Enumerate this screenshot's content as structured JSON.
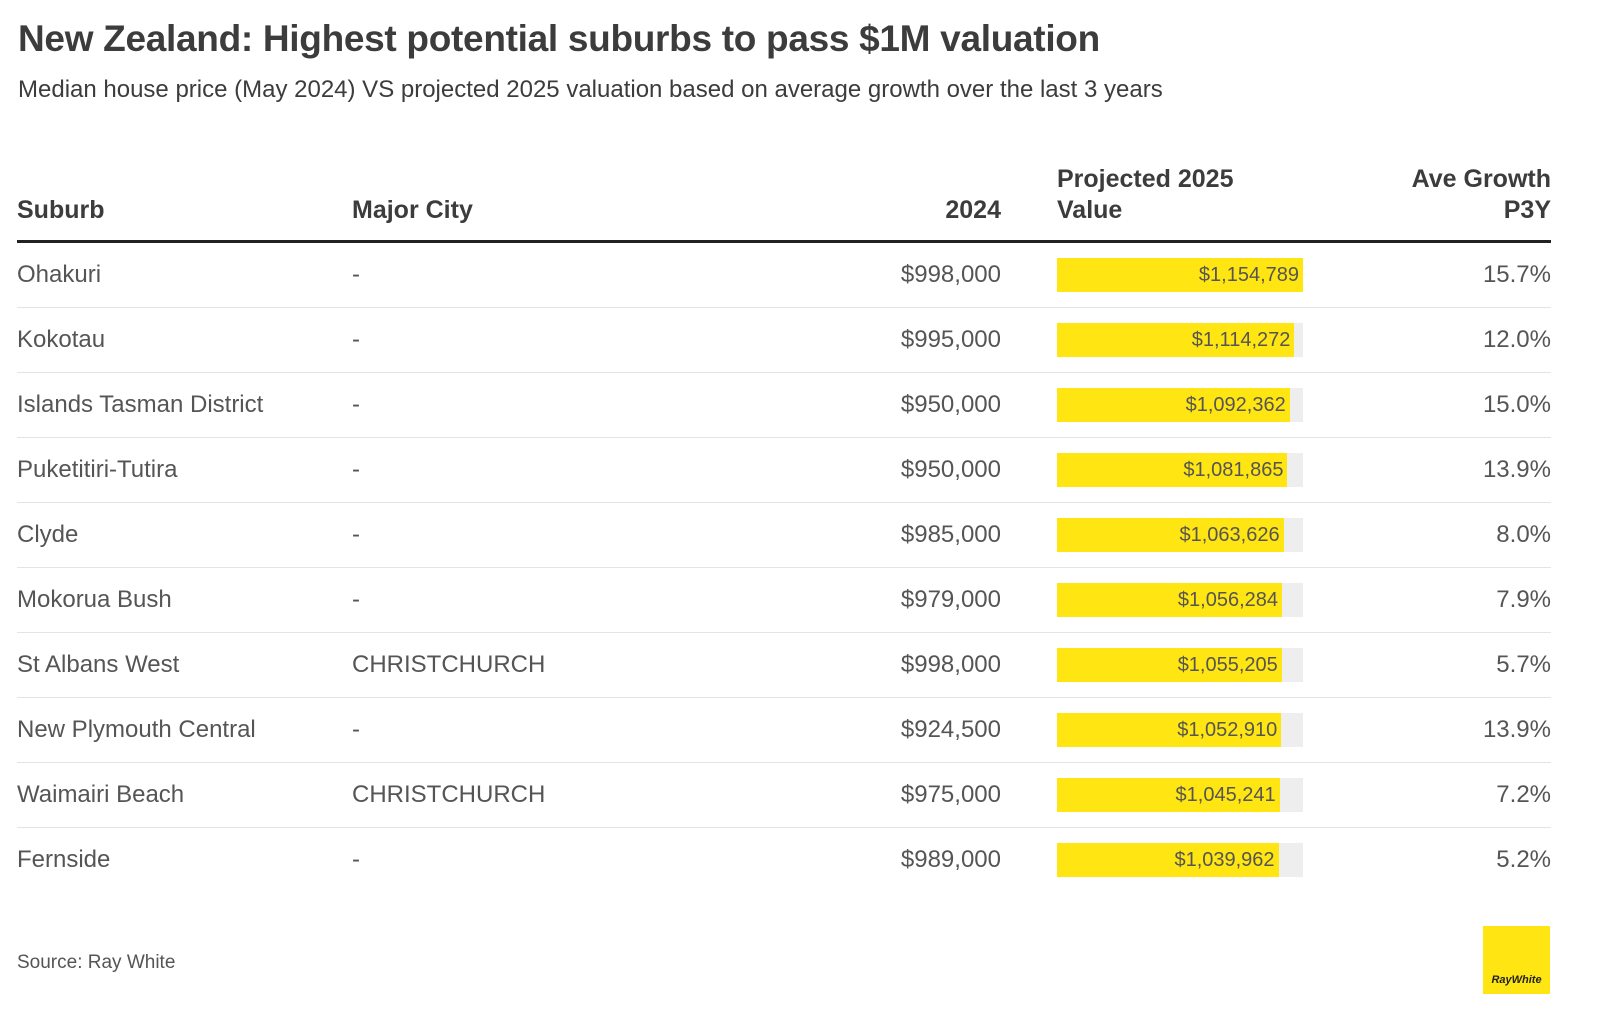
{
  "title": "New Zealand: Highest potential suburbs to pass $1M valuation",
  "subtitle": "Median house price (May 2024) VS projected 2025 valuation based on average growth over the last 3 years",
  "headers": {
    "suburb": "Suburb",
    "city": "Major City",
    "y2024": "2024",
    "proj_line1": "Projected 2025",
    "proj_line2": "Value",
    "growth_line1": "Ave Growth",
    "growth_line2": "P3Y"
  },
  "source": "Source: Ray White",
  "logo_text": "RayWhite",
  "colors": {
    "bar": "#ffe512",
    "track": "#eeeeee",
    "rule": "#222222"
  },
  "chart_data": {
    "type": "table",
    "bar_column": "Projected 2025 Value",
    "bar_max": 1154789,
    "rows": [
      {
        "suburb": "Ohakuri",
        "city": "-",
        "v2024": "$998,000",
        "projected": 1154789,
        "projected_label": "$1,154,789",
        "growth": "15.7%"
      },
      {
        "suburb": "Kokotau",
        "city": "-",
        "v2024": "$995,000",
        "projected": 1114272,
        "projected_label": "$1,114,272",
        "growth": "12.0%"
      },
      {
        "suburb": "Islands Tasman District",
        "city": "-",
        "v2024": "$950,000",
        "projected": 1092362,
        "projected_label": "$1,092,362",
        "growth": "15.0%"
      },
      {
        "suburb": "Puketitiri-Tutira",
        "city": "-",
        "v2024": "$950,000",
        "projected": 1081865,
        "projected_label": "$1,081,865",
        "growth": "13.9%"
      },
      {
        "suburb": "Clyde",
        "city": "-",
        "v2024": "$985,000",
        "projected": 1063626,
        "projected_label": "$1,063,626",
        "growth": "8.0%"
      },
      {
        "suburb": "Mokorua Bush",
        "city": "-",
        "v2024": "$979,000",
        "projected": 1056284,
        "projected_label": "$1,056,284",
        "growth": "7.9%"
      },
      {
        "suburb": "St Albans West",
        "city": "CHRISTCHURCH",
        "v2024": "$998,000",
        "projected": 1055205,
        "projected_label": "$1,055,205",
        "growth": "5.7%"
      },
      {
        "suburb": "New Plymouth Central",
        "city": "-",
        "v2024": "$924,500",
        "projected": 1052910,
        "projected_label": "$1,052,910",
        "growth": "13.9%"
      },
      {
        "suburb": "Waimairi Beach",
        "city": "CHRISTCHURCH",
        "v2024": "$975,000",
        "projected": 1045241,
        "projected_label": "$1,045,241",
        "growth": "7.2%"
      },
      {
        "suburb": "Fernside",
        "city": "-",
        "v2024": "$989,000",
        "projected": 1039962,
        "projected_label": "$1,039,962",
        "growth": "5.2%"
      }
    ]
  }
}
